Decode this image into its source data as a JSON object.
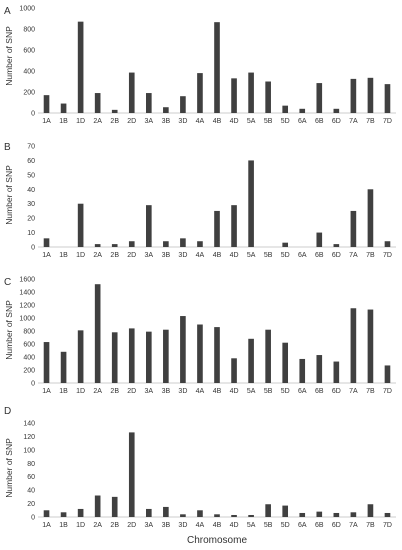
{
  "chart_data": [
    {
      "type": "bar",
      "panel_label": "A",
      "ylabel": "Number of SNP",
      "ylim": [
        0,
        1000
      ],
      "yticks": [
        0,
        200,
        400,
        600,
        800,
        1000
      ],
      "categories": [
        "1A",
        "1B",
        "1D",
        "2A",
        "2B",
        "2D",
        "3A",
        "3B",
        "3D",
        "4A",
        "4B",
        "4D",
        "5A",
        "5B",
        "5D",
        "6A",
        "6B",
        "6D",
        "7A",
        "7B",
        "7D"
      ],
      "values": [
        170,
        90,
        870,
        190,
        30,
        385,
        190,
        55,
        160,
        380,
        865,
        330,
        385,
        300,
        70,
        40,
        285,
        40,
        325,
        335,
        275
      ],
      "bar_color": "#404040"
    },
    {
      "type": "bar",
      "panel_label": "B",
      "ylabel": "Number of SNP",
      "ylim": [
        0,
        70
      ],
      "yticks": [
        0,
        10,
        20,
        30,
        40,
        50,
        60,
        70
      ],
      "categories": [
        "1A",
        "1B",
        "1D",
        "2A",
        "2B",
        "2D",
        "3A",
        "3B",
        "3D",
        "4A",
        "4B",
        "4D",
        "5A",
        "5B",
        "5D",
        "6A",
        "6B",
        "6D",
        "7A",
        "7B",
        "7D"
      ],
      "values": [
        6,
        0,
        30,
        2,
        2,
        4,
        29,
        4,
        6,
        4,
        25,
        29,
        60,
        0,
        3,
        0,
        10,
        2,
        25,
        40,
        4
      ],
      "bar_color": "#404040"
    },
    {
      "type": "bar",
      "panel_label": "C",
      "ylabel": "Number of SNP",
      "ylim": [
        0,
        1600
      ],
      "yticks": [
        0,
        200,
        400,
        600,
        800,
        1000,
        1200,
        1400,
        1600
      ],
      "categories": [
        "1A",
        "1B",
        "1D",
        "2A",
        "2B",
        "2D",
        "3A",
        "3B",
        "3D",
        "4A",
        "4B",
        "4D",
        "5A",
        "5B",
        "5D",
        "6A",
        "6B",
        "6D",
        "7A",
        "7B",
        "7D"
      ],
      "values": [
        630,
        480,
        810,
        1520,
        780,
        840,
        790,
        820,
        1030,
        900,
        860,
        380,
        680,
        820,
        620,
        370,
        430,
        330,
        1150,
        1130,
        270
      ],
      "bar_color": "#404040"
    },
    {
      "type": "bar",
      "panel_label": "D",
      "ylabel": "Number of SNP",
      "xlabel": "Chromosome",
      "ylim": [
        0,
        140
      ],
      "yticks": [
        0,
        20,
        40,
        60,
        80,
        100,
        120,
        140
      ],
      "categories": [
        "1A",
        "1B",
        "1D",
        "2A",
        "2B",
        "2D",
        "3A",
        "3B",
        "3D",
        "4A",
        "4B",
        "4D",
        "5A",
        "5B",
        "5D",
        "6A",
        "6B",
        "6D",
        "7A",
        "7B",
        "7D"
      ],
      "values": [
        10,
        7,
        12,
        32,
        30,
        126,
        12,
        15,
        4,
        10,
        4,
        3,
        3,
        19,
        17,
        6,
        8,
        6,
        7,
        19,
        6
      ],
      "bar_color": "#404040"
    }
  ]
}
